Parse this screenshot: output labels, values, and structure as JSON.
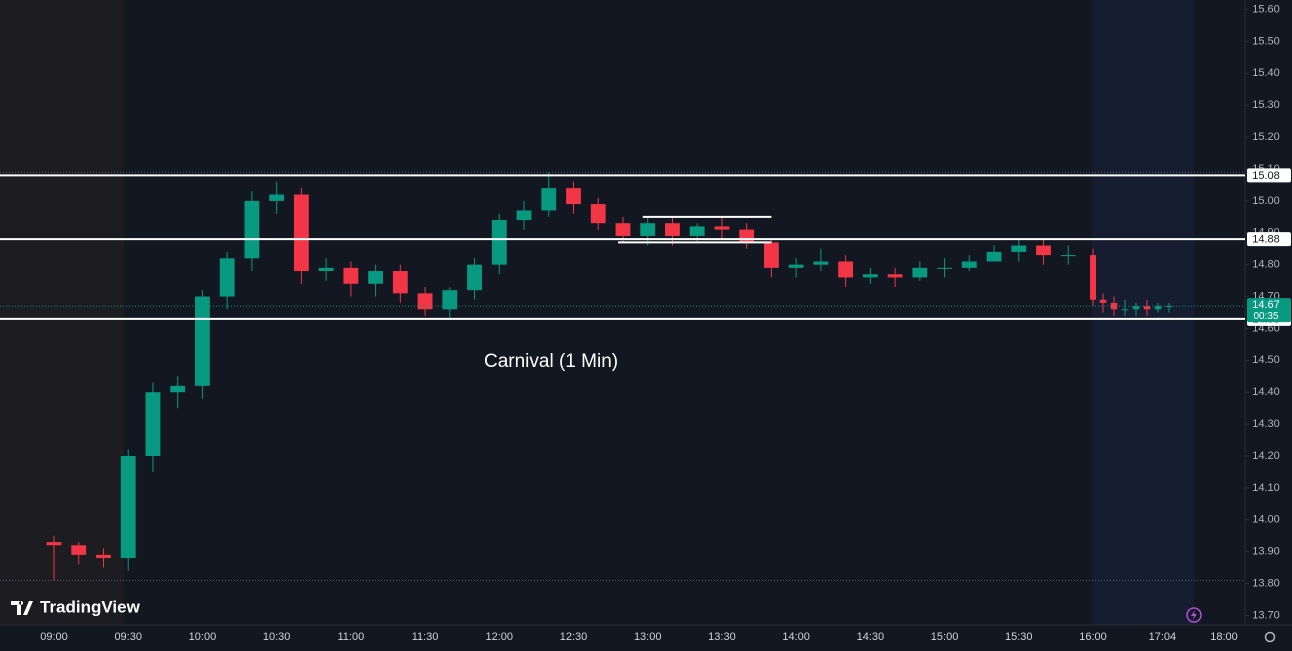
{
  "chart_data": {
    "type": "candlestick",
    "title": "Carnival (1 Min)",
    "brand": "TradingView",
    "x": [
      "09:00",
      "09:10",
      "09:20",
      "09:30",
      "09:40",
      "09:50",
      "10:00",
      "10:10",
      "10:20",
      "10:30",
      "10:40",
      "10:50",
      "11:00",
      "11:10",
      "11:20",
      "11:30",
      "11:40",
      "11:50",
      "12:00",
      "12:10",
      "12:20",
      "12:30",
      "12:40",
      "12:50",
      "13:00",
      "13:10",
      "13:20",
      "13:30",
      "13:40",
      "13:50",
      "14:00",
      "14:10",
      "14:20",
      "14:30",
      "14:40",
      "14:50",
      "15:00",
      "15:10",
      "15:20",
      "15:30",
      "15:40",
      "15:50",
      "16:00",
      "16:10",
      "16:20",
      "16:30",
      "16:40",
      "16:50",
      "17:00",
      "17:10"
    ],
    "open": [
      13.93,
      13.92,
      13.89,
      13.88,
      14.2,
      14.4,
      14.42,
      14.7,
      14.82,
      15.0,
      15.02,
      14.78,
      14.79,
      14.74,
      14.78,
      14.71,
      14.66,
      14.72,
      14.8,
      14.94,
      14.97,
      15.04,
      14.99,
      14.93,
      14.89,
      14.93,
      14.89,
      14.92,
      14.91,
      14.87,
      14.79,
      14.8,
      14.81,
      14.76,
      14.77,
      14.76,
      14.79,
      14.79,
      14.81,
      14.84,
      14.86,
      14.83,
      14.83,
      14.69,
      14.68,
      14.66,
      14.66,
      14.67,
      14.66,
      14.67
    ],
    "high": [
      13.95,
      13.93,
      13.91,
      14.22,
      14.43,
      14.45,
      14.72,
      14.84,
      15.03,
      15.06,
      15.04,
      14.82,
      14.81,
      14.8,
      14.8,
      14.73,
      14.73,
      14.82,
      14.96,
      15.0,
      15.09,
      15.06,
      15.01,
      14.95,
      14.95,
      14.95,
      14.93,
      14.95,
      14.93,
      14.88,
      14.82,
      14.85,
      14.83,
      14.79,
      14.79,
      14.81,
      14.82,
      14.83,
      14.86,
      14.88,
      14.88,
      14.86,
      14.85,
      14.71,
      14.7,
      14.69,
      14.68,
      14.69,
      14.68,
      14.68
    ],
    "low": [
      13.81,
      13.86,
      13.85,
      13.84,
      14.15,
      14.35,
      14.38,
      14.66,
      14.78,
      14.96,
      14.74,
      14.75,
      14.7,
      14.7,
      14.68,
      14.64,
      14.63,
      14.69,
      14.77,
      14.91,
      14.95,
      14.96,
      14.91,
      14.87,
      14.86,
      14.86,
      14.87,
      14.88,
      14.85,
      14.76,
      14.76,
      14.78,
      14.73,
      14.74,
      14.73,
      14.75,
      14.76,
      14.78,
      14.81,
      14.81,
      14.8,
      14.8,
      14.67,
      14.65,
      14.64,
      14.64,
      14.64,
      14.64,
      14.65,
      14.65
    ],
    "close": [
      13.92,
      13.89,
      13.88,
      14.2,
      14.4,
      14.42,
      14.7,
      14.82,
      15.0,
      15.02,
      14.78,
      14.79,
      14.74,
      14.78,
      14.71,
      14.66,
      14.72,
      14.8,
      14.94,
      14.97,
      15.04,
      14.99,
      14.93,
      14.89,
      14.93,
      14.89,
      14.92,
      14.91,
      14.87,
      14.79,
      14.8,
      14.81,
      14.76,
      14.77,
      14.76,
      14.79,
      14.79,
      14.81,
      14.84,
      14.86,
      14.83,
      14.83,
      14.69,
      14.68,
      14.66,
      14.66,
      14.67,
      14.66,
      14.67,
      14.67
    ],
    "up_color": "#089981",
    "down_color": "#f23645",
    "ylim": [
      13.67,
      15.63
    ],
    "yticks": [
      {
        "value": 13.7,
        "label": "13.70"
      },
      {
        "value": 13.8,
        "label": "13.80"
      },
      {
        "value": 13.9,
        "label": "13.90"
      },
      {
        "value": 14.0,
        "label": "14.00"
      },
      {
        "value": 14.1,
        "label": "14.10"
      },
      {
        "value": 14.2,
        "label": "14.20"
      },
      {
        "value": 14.3,
        "label": "14.30"
      },
      {
        "value": 14.4,
        "label": "14.40"
      },
      {
        "value": 14.5,
        "label": "14.50"
      },
      {
        "value": 14.6,
        "label": "14.60"
      },
      {
        "value": 14.7,
        "label": "14.70"
      },
      {
        "value": 14.8,
        "label": "14.80"
      },
      {
        "value": 14.9,
        "label": "14.90"
      },
      {
        "value": 15.0,
        "label": "15.00"
      },
      {
        "value": 15.1,
        "label": "15.10"
      },
      {
        "value": 15.2,
        "label": "15.20"
      },
      {
        "value": 15.3,
        "label": "15.30"
      },
      {
        "value": 15.4,
        "label": "15.40"
      },
      {
        "value": 15.5,
        "label": "15.50"
      },
      {
        "value": 15.6,
        "label": "15.60"
      }
    ],
    "xticks": [
      "09:00",
      "09:30",
      "10:00",
      "10:30",
      "11:00",
      "11:30",
      "12:00",
      "12:30",
      "13:00",
      "13:30",
      "14:00",
      "14:30",
      "15:00",
      "15:30",
      "16:00",
      "17:04",
      "18:00"
    ],
    "price_lines": [
      {
        "value": 15.08
      },
      {
        "value": 14.88
      },
      {
        "value": 14.63
      }
    ],
    "segments": [
      {
        "value": 14.95,
        "x": [
          "12:58",
          "13:50"
        ]
      },
      {
        "value": 14.87,
        "x": [
          "12:48",
          "13:50"
        ]
      }
    ],
    "day_high": 15.09,
    "day_low": 13.81,
    "last_price": 14.67,
    "countdown": "00:35",
    "grid": false
  }
}
